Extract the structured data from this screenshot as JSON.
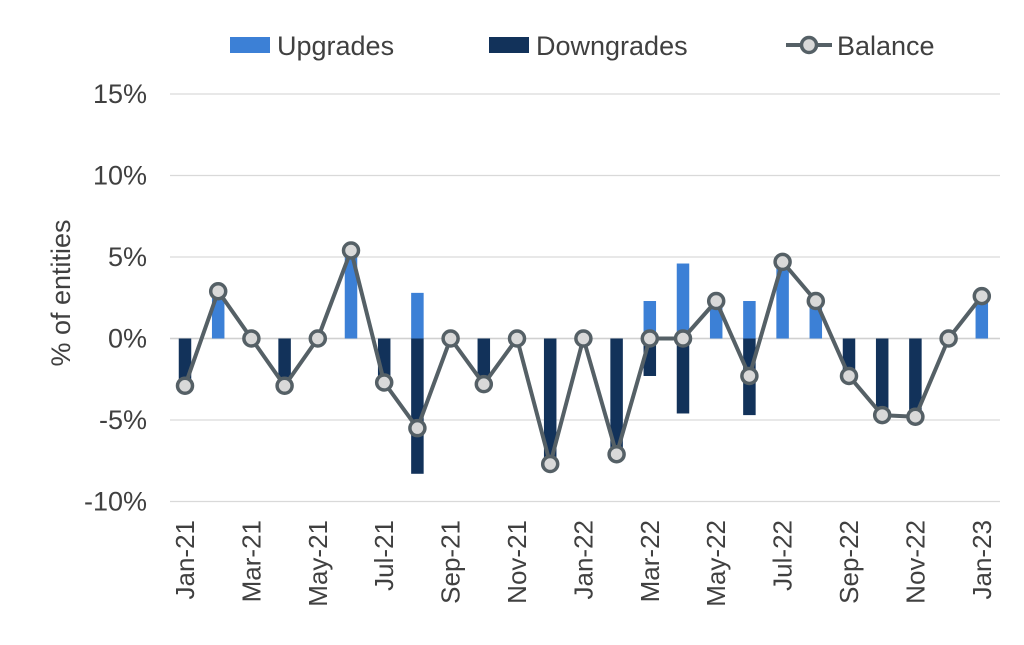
{
  "chart_data": {
    "type": "bar",
    "ylabel": "% of entities",
    "xlabel": "",
    "title": "",
    "ylim": [
      -10,
      15
    ],
    "yticks": [
      -10,
      -5,
      0,
      5,
      10,
      15
    ],
    "ytick_labels": [
      "-10%",
      "-5%",
      "0%",
      "5%",
      "10%",
      "15%"
    ],
    "grid": true,
    "legend_position": "top",
    "categories": [
      "Jan-21",
      "Feb-21",
      "Mar-21",
      "Apr-21",
      "May-21",
      "Jun-21",
      "Jul-21",
      "Aug-21",
      "Sep-21",
      "Oct-21",
      "Nov-21",
      "Dec-21",
      "Jan-22",
      "Feb-22",
      "Mar-22",
      "Apr-22",
      "May-22",
      "Jun-22",
      "Jul-22",
      "Aug-22",
      "Sep-22",
      "Oct-22",
      "Nov-22",
      "Dec-22",
      "Jan-23"
    ],
    "xtick_labels": [
      "Jan-21",
      "Mar-21",
      "May-21",
      "Jul-21",
      "Sep-21",
      "Nov-21",
      "Jan-22",
      "Mar-22",
      "May-22",
      "Jul-22",
      "Sep-22",
      "Nov-22",
      "Jan-23"
    ],
    "series": [
      {
        "name": "Upgrades",
        "kind": "bar",
        "color": "#3c80d6",
        "values": [
          0,
          2.9,
          0,
          0,
          0,
          5.4,
          0,
          2.8,
          0,
          0,
          0,
          0,
          0,
          0,
          2.3,
          4.6,
          2.3,
          2.3,
          4.7,
          2.3,
          0,
          0,
          0,
          0,
          2.6
        ]
      },
      {
        "name": "Downgrades",
        "kind": "bar",
        "color": "#12325a",
        "values": [
          -2.9,
          0,
          0,
          -2.9,
          0,
          0,
          -2.7,
          -8.3,
          0,
          -2.8,
          0,
          -7.7,
          0,
          -7.1,
          -2.3,
          -4.6,
          0,
          -4.7,
          0,
          0,
          -2.3,
          -4.7,
          -4.8,
          0,
          0
        ]
      },
      {
        "name": "Balance",
        "kind": "line",
        "color": "#556066",
        "values": [
          -2.9,
          2.9,
          0,
          -2.9,
          0,
          5.4,
          -2.7,
          -5.5,
          0,
          -2.8,
          0,
          -7.7,
          0,
          -7.1,
          0,
          0,
          2.3,
          -2.3,
          4.7,
          2.3,
          -2.3,
          -4.7,
          -4.8,
          0,
          2.6
        ]
      }
    ]
  }
}
